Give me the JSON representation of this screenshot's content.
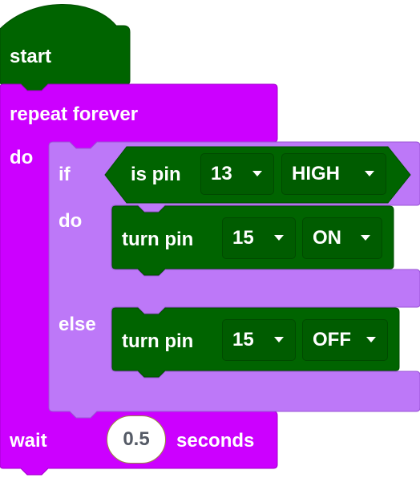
{
  "colors": {
    "event_block": "#006400",
    "loop_block": "#cc00ff",
    "if_block": "#bd78f8",
    "pin_block": "#006400",
    "field_bg": "#005c00"
  },
  "start_block": {
    "label": "start"
  },
  "repeat_block": {
    "label": "repeat forever",
    "do_label": "do"
  },
  "if_block": {
    "if_label": "if",
    "do_label": "do",
    "else_label": "else"
  },
  "condition_block": {
    "label": "is pin",
    "pin_value": "13",
    "state_value": "HIGH"
  },
  "then_block": {
    "label": "turn pin",
    "pin_value": "15",
    "state_value": "ON"
  },
  "else_block": {
    "label": "turn pin",
    "pin_value": "15",
    "state_value": "OFF"
  },
  "wait_block": {
    "label": "wait",
    "value": "0.5",
    "unit_label": "seconds"
  }
}
